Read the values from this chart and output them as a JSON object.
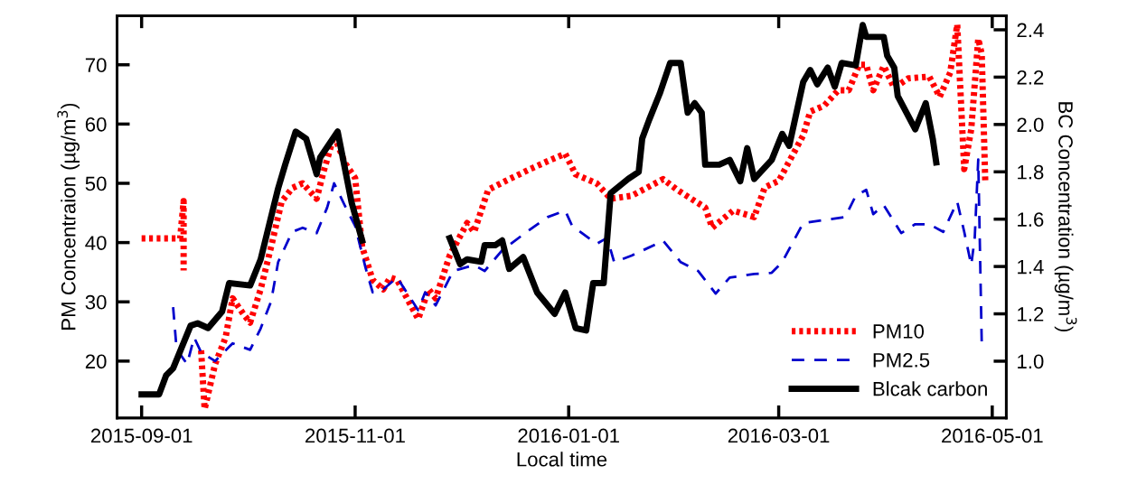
{
  "chart_data": {
    "type": "line",
    "xlabel": "Local time",
    "ylabel": "PM Concentraion (µg/m$^{3}$)",
    "y2label": "BC Concentration (µg/m$^{3}$)",
    "xlim": [
      "2015-08-25",
      "2016-05-05"
    ],
    "xticks": [
      "2015-09-01",
      "2015-11-01",
      "2016-01-01",
      "2016-03-01",
      "2016-05-01"
    ],
    "ylim": [
      10.4,
      78.3
    ],
    "yticks": [
      20,
      30,
      40,
      50,
      60,
      70
    ],
    "y2lim": [
      0.76,
      2.46
    ],
    "y2ticks": [
      {
        "value": 1,
        "label": "1.0"
      },
      1.2,
      1.4,
      1.6,
      1.8,
      {
        "value": 2,
        "label": "2.0"
      },
      2.2,
      2.4
    ],
    "grid": false,
    "legend": "bottom right",
    "series": [
      {
        "name": "PM10",
        "color": "#ff0000",
        "line_style": "dotted",
        "x": [
          "2015-09-01",
          "2015-09-12",
          "2015-09-13",
          "2015-09-13",
          "2015-09-15",
          "2015-09-18",
          "2015-09-19",
          "2015-09-22",
          "2015-09-25",
          "2015-09-27",
          "2015-09-30",
          "2015-10-02",
          "2015-10-05",
          "2015-10-08",
          "2015-10-11",
          "2015-10-14",
          "2015-10-17",
          "2015-10-21",
          "2015-10-23",
          "2015-10-26",
          "2015-10-29",
          "2015-11-01",
          "2015-11-03",
          "2015-11-06",
          "2015-11-09",
          "2015-11-11",
          "2015-11-13",
          "2015-11-19",
          "2015-11-22",
          "2015-11-24",
          "2015-11-28",
          "2015-12-03",
          "2015-12-05",
          "2015-12-09",
          "2015-12-14",
          "2015-12-21",
          "2015-12-27",
          "2015-12-31",
          "2016-01-03",
          "2016-01-09",
          "2016-01-13",
          "2016-01-19",
          "2016-01-28",
          "2016-02-01",
          "2016-02-09",
          "2016-02-11",
          "2016-02-17",
          "2016-02-23",
          "2016-02-26",
          "2016-03-01",
          "2016-03-08",
          "2016-03-10",
          "2016-03-14",
          "2016-03-18",
          "2016-03-21",
          "2016-03-24",
          "2016-03-26",
          "2016-03-28",
          "2016-03-31",
          "2016-04-03",
          "2016-04-07",
          "2016-04-13",
          "2016-04-16",
          "2016-04-19",
          "2016-04-21",
          "2016-04-23",
          "2016-04-25",
          "2016-04-27",
          "2016-04-28",
          "2016-04-29"
        ],
        "values": [
          40.7,
          40.7,
          47.0,
          35.3,
          null,
          21.8,
          11.9,
          19.5,
          24.0,
          30.6,
          28.0,
          26.5,
          32.1,
          39.3,
          46.9,
          49.2,
          50.0,
          47.4,
          52.0,
          58.1,
          53.5,
          50.9,
          39.3,
          33.7,
          32.1,
          34.1,
          33.7,
          27.1,
          32.1,
          30.6,
          37.8,
          43.3,
          41.8,
          48.9,
          50.4,
          52.4,
          54.0,
          55.0,
          51.5,
          50.0,
          47.4,
          47.9,
          50.7,
          48.9,
          45.9,
          42.5,
          45.4,
          44.3,
          49.3,
          50.4,
          58.1,
          62.1,
          63.1,
          65.7,
          65.7,
          70.0,
          70.0,
          65.7,
          69.8,
          66.1,
          67.7,
          68.0,
          64.6,
          68.7,
          76.8,
          52.4,
          59.1,
          74.4,
          71.8,
          50.4
        ]
      },
      {
        "name": "PM2.5",
        "color": "#0000cc",
        "line_style": "dashed",
        "x": [
          "2015-09-10",
          "2015-09-11",
          "2015-09-14",
          "2015-09-16",
          "2015-09-18",
          "2015-09-22",
          "2015-09-27",
          "2015-10-02",
          "2015-10-05",
          "2015-10-08",
          "2015-10-10",
          "2015-10-14",
          "2015-10-17",
          "2015-10-21",
          "2015-10-24",
          "2015-10-26",
          "2015-10-29",
          "2015-11-01",
          "2015-11-04",
          "2015-11-06",
          "2015-11-09",
          "2015-11-13",
          "2015-11-19",
          "2015-11-21",
          "2015-11-24",
          "2015-11-29",
          "2015-12-05",
          "2015-12-08",
          "2015-12-13",
          "2015-12-20",
          "2015-12-26",
          "2015-12-31",
          "2016-01-02",
          "2016-01-09",
          "2016-01-12",
          "2016-01-14",
          "2016-01-19",
          "2016-01-28",
          "2016-02-02",
          "2016-02-07",
          "2016-02-12",
          "2016-02-16",
          "2016-02-23",
          "2016-02-28",
          "2016-03-02",
          "2016-03-08",
          "2016-03-14",
          "2016-03-20",
          "2016-03-23",
          "2016-03-26",
          "2016-03-28",
          "2016-03-31",
          "2016-04-05",
          "2016-04-09",
          "2016-04-13",
          "2016-04-17",
          "2016-04-21",
          "2016-04-23",
          "2016-04-25",
          "2016-04-26",
          "2016-04-27",
          "2016-04-28"
        ],
        "values": [
          29.1,
          22.0,
          19.5,
          24.0,
          21.5,
          20.0,
          23.0,
          21.9,
          25.5,
          30.1,
          36.7,
          41.8,
          42.5,
          41.6,
          45.9,
          50.0,
          46.3,
          42.8,
          35.7,
          31.6,
          32.1,
          34.1,
          28.6,
          31.6,
          29.4,
          35.2,
          36.2,
          35.2,
          38.7,
          41.8,
          44.3,
          45.4,
          42.8,
          39.8,
          40.8,
          36.7,
          37.8,
          40.3,
          36.7,
          35.2,
          31.4,
          34.1,
          34.7,
          34.9,
          36.7,
          43.3,
          43.8,
          44.3,
          47.9,
          48.9,
          44.8,
          46.3,
          41.6,
          43.1,
          43.1,
          41.8,
          46.9,
          41.8,
          36.2,
          40.8,
          54.0,
          23.0
        ]
      },
      {
        "name": "Blcak carbon",
        "color": "#000000",
        "line_style": "solid",
        "axis": "y2",
        "x": [
          "2015-09-01",
          "2015-09-06",
          "2015-09-08",
          "2015-09-10",
          "2015-09-15",
          "2015-09-17",
          "2015-09-20",
          "2015-09-24",
          "2015-09-26",
          "2015-10-02",
          "2015-10-05",
          "2015-10-10",
          "2015-10-12",
          "2015-10-15",
          "2015-10-18",
          "2015-10-21",
          "2015-10-22",
          "2015-10-27",
          "2015-10-31",
          "2015-11-03",
          "2015-11-15",
          "2015-11-28",
          "2015-12-01",
          "2015-12-03",
          "2015-12-07",
          "2015-12-08",
          "2015-12-11",
          "2015-12-13",
          "2015-12-15",
          "2015-12-19",
          "2015-12-23",
          "2015-12-28",
          "2015-12-31",
          "2016-01-03",
          "2016-01-06",
          "2016-01-08",
          "2016-01-11",
          "2016-01-13",
          "2016-01-18",
          "2016-01-21",
          "2016-01-22",
          "2016-01-24",
          "2016-01-27",
          "2016-01-30",
          "2016-02-02",
          "2016-02-04",
          "2016-02-06",
          "2016-02-08",
          "2016-02-09",
          "2016-02-13",
          "2016-02-16",
          "2016-02-19",
          "2016-02-21",
          "2016-02-23",
          "2016-02-28",
          "2016-03-02",
          "2016-03-04",
          "2016-03-08",
          "2016-03-10",
          "2016-03-12",
          "2016-03-15",
          "2016-03-17",
          "2016-03-19",
          "2016-03-23",
          "2016-03-25",
          "2016-03-26",
          "2016-03-31",
          "2016-04-01",
          "2016-04-03",
          "2016-04-04",
          "2016-04-09",
          "2016-04-12",
          "2016-04-14",
          "2016-04-15"
        ],
        "values": [
          0.86,
          0.86,
          0.94,
          0.97,
          1.15,
          1.16,
          1.14,
          1.21,
          1.33,
          1.32,
          1.43,
          1.73,
          1.83,
          1.97,
          1.94,
          1.79,
          1.86,
          1.97,
          1.67,
          1.51,
          null,
          1.52,
          1.41,
          1.43,
          1.42,
          1.49,
          1.49,
          1.51,
          1.39,
          1.44,
          1.29,
          1.2,
          1.29,
          1.14,
          1.13,
          1.33,
          1.33,
          1.71,
          1.77,
          1.8,
          1.94,
          2.02,
          2.13,
          2.26,
          2.26,
          2.05,
          2.09,
          2.05,
          1.83,
          1.83,
          1.85,
          1.76,
          1.9,
          1.77,
          1.85,
          1.96,
          1.91,
          2.18,
          2.23,
          2.17,
          2.24,
          2.16,
          2.26,
          2.25,
          2.42,
          2.37,
          2.37,
          2.29,
          2.24,
          2.12,
          1.98,
          2.09,
          1.94,
          1.84
        ]
      }
    ]
  }
}
